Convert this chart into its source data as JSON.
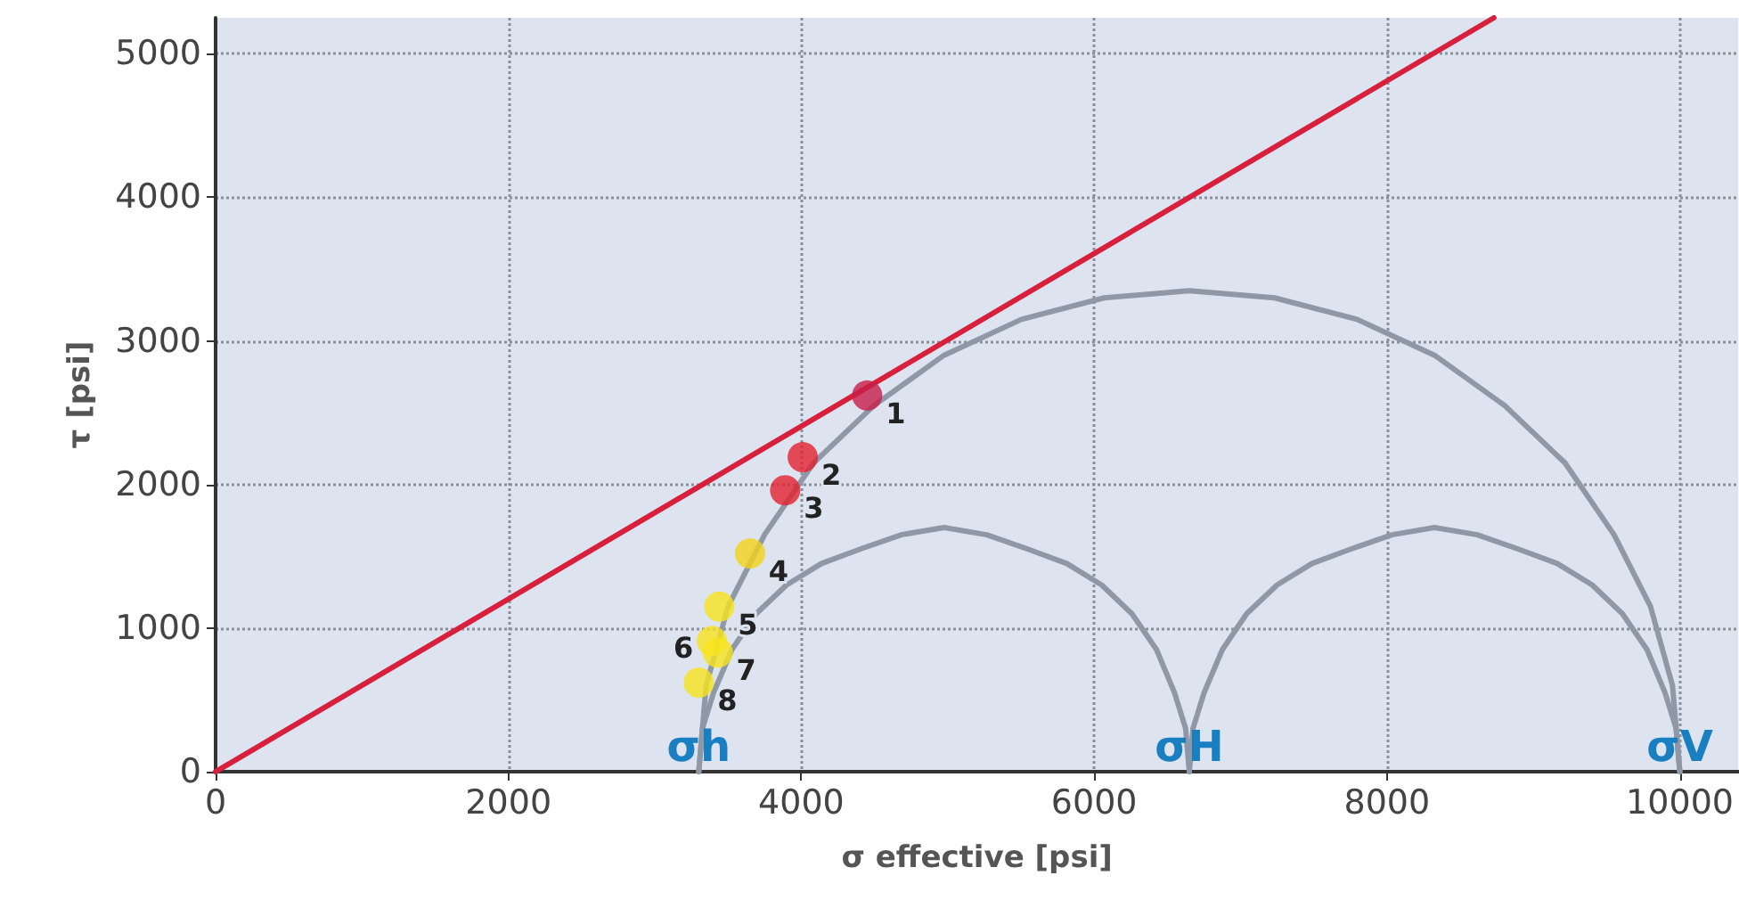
{
  "chart_data": {
    "type": "line",
    "xlabel": "σ effective [psi]",
    "ylabel": "τ [psi]",
    "xlim": [
      0,
      10400
    ],
    "ylim": [
      0,
      5250
    ],
    "xticks": [
      0,
      2000,
      4000,
      6000,
      8000,
      10000
    ],
    "yticks": [
      0,
      1000,
      2000,
      3000,
      4000,
      5000
    ],
    "grid": true,
    "marker": "none",
    "series": [
      {
        "color": "#d81f3c",
        "x": [
          0,
          8730
        ],
        "values": [
          0,
          5250
        ]
      },
      {
        "color": "#8f98a6",
        "x": [
          10000,
          9950,
          9800,
          9551,
          9216,
          8804,
          8325,
          7796,
          7232,
          6650,
          6068,
          5504,
          4975,
          4496,
          4084,
          3749,
          3500,
          3350,
          3300
        ],
        "values": [
          0,
          600,
          1150,
          1650,
          2150,
          2550,
          2900,
          3150,
          3300,
          3350,
          3300,
          3150,
          2900,
          2550,
          2150,
          1650,
          1150,
          600,
          0
        ]
      },
      {
        "color": "#8f98a6",
        "x": [
          6650,
          6625,
          6549,
          6426,
          6258,
          6052,
          5813,
          5548,
          5266,
          4975,
          4684,
          4402,
          4138,
          3899,
          3692,
          3526,
          3401,
          3325,
          3300
        ],
        "values": [
          0,
          300,
          550,
          850,
          1100,
          1300,
          1450,
          1550,
          1650,
          1700,
          1650,
          1550,
          1450,
          1300,
          1100,
          850,
          550,
          300,
          0
        ]
      },
      {
        "color": "#8f98a6",
        "x": [
          10000,
          9975,
          9899,
          9776,
          9608,
          9402,
          9163,
          8898,
          8616,
          8325,
          8034,
          7752,
          7488,
          7249,
          7042,
          6876,
          6751,
          6675,
          6650
        ],
        "values": [
          0,
          300,
          550,
          850,
          1100,
          1300,
          1450,
          1550,
          1650,
          1700,
          1650,
          1550,
          1450,
          1300,
          1100,
          850,
          550,
          300,
          0
        ]
      },
      {
        "type": "scatter",
        "marker": "circle",
        "x": [
          4450,
          4010,
          3890,
          3650,
          3440,
          3390,
          3430,
          3300
        ],
        "values": [
          2620,
          2190,
          1960,
          1520,
          1150,
          910,
          830,
          620
        ],
        "colors": [
          "#c81e4a",
          "#e32030",
          "#e32030",
          "#f2d21a",
          "#f7e41e",
          "#f7e41e",
          "#f7e41e",
          "#f7e41e"
        ]
      }
    ],
    "annotations": [
      {
        "text": "σh",
        "x": 3300,
        "y": 0
      },
      {
        "text": "σH",
        "x": 6650,
        "y": 0
      },
      {
        "text": "σV",
        "x": 10000,
        "y": 0
      },
      {
        "text": "1",
        "x": 4450,
        "y": 2620
      },
      {
        "text": "2",
        "x": 4010,
        "y": 2190
      },
      {
        "text": "3",
        "x": 3890,
        "y": 1960
      },
      {
        "text": "4",
        "x": 3650,
        "y": 1520
      },
      {
        "text": "5",
        "x": 3440,
        "y": 1150
      },
      {
        "text": "6",
        "x": 3390,
        "y": 910
      },
      {
        "text": "7",
        "x": 3430,
        "y": 830
      },
      {
        "text": "8",
        "x": 3300,
        "y": 620
      }
    ]
  }
}
